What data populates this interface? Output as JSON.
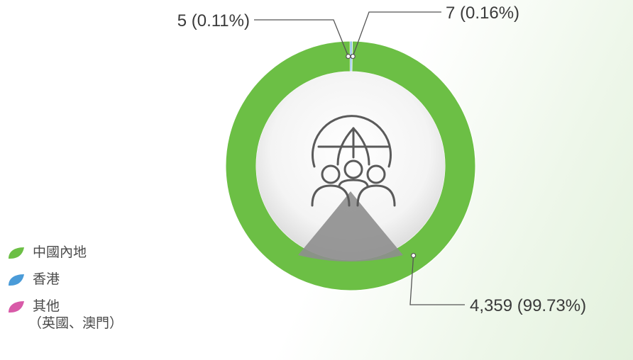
{
  "chart_data": {
    "type": "pie",
    "categories": [
      "中國內地",
      "香港",
      "其他（英國、澳門）"
    ],
    "values": [
      4359,
      5,
      7
    ],
    "percentages": [
      99.73,
      0.11,
      0.16
    ],
    "data_labels": [
      "4,359 (99.73%)",
      "5 (0.11%)",
      "7 (0.16%)"
    ],
    "colors": [
      "#6cbf45",
      "#4a9bd8",
      "#d85aa8"
    ],
    "center_icon": "globe-people-icon"
  },
  "legend": [
    {
      "label": "中國內地",
      "color": "#6cbf45",
      "icon": "leaf-icon"
    },
    {
      "label": "香港",
      "color": "#4a9bd8",
      "icon": "leaf-icon"
    },
    {
      "label": "其他",
      "sublabel": "（英國、澳門）",
      "color": "#d85aa8",
      "icon": "leaf-icon"
    }
  ]
}
